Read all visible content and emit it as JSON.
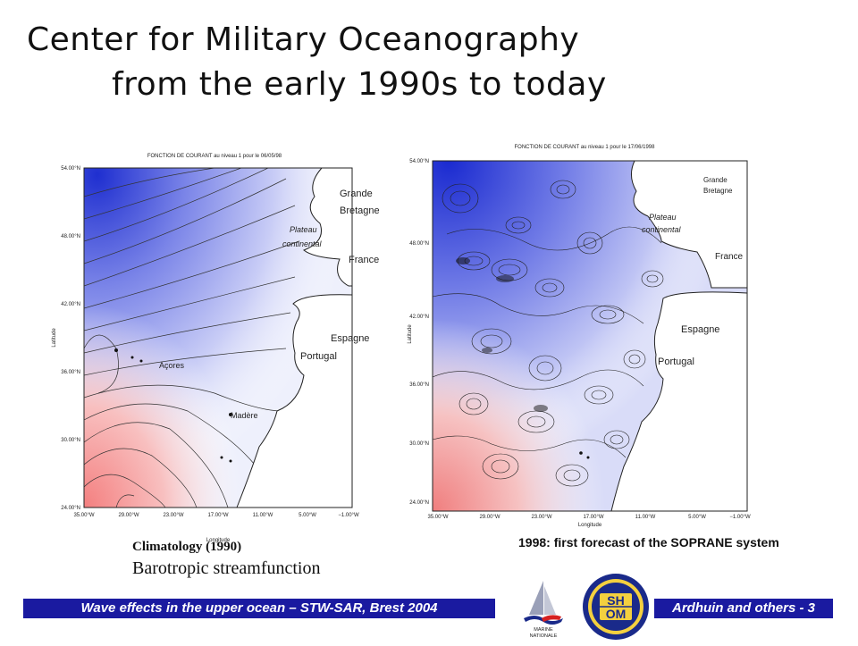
{
  "title": {
    "line1": "Center for Military Oceanography",
    "line2": "from the early 1990s to today"
  },
  "map_left": {
    "header": "FONCTION DE COURANT au niveau 1 pour le 06/05/98",
    "y_ticks": [
      "54.00°N",
      "48.00°N",
      "42.00°N",
      "36.00°N",
      "30.00°N",
      "24.00°N"
    ],
    "x_ticks": [
      "35.00°W",
      "29.00°W",
      "23.00°W",
      "17.00°W",
      "11.00°W",
      "5.00°W",
      "−1.00°W"
    ],
    "ylabel": "Latitude",
    "xlabel": "Longitude",
    "labels": {
      "gb1": "Grande",
      "gb2": "Bretagne",
      "plateau1": "Plateau",
      "plateau2": "continental",
      "france": "France",
      "espagne": "Espagne",
      "portugal": "Portugal",
      "acores": "Açores",
      "madere": "Madère"
    }
  },
  "map_right": {
    "header": "FONCTION DE COURANT au niveau 1 pour le 17/06/1998",
    "y_ticks": [
      "54.00°N",
      "48.00°N",
      "42.00°N",
      "36.00°N",
      "30.00°N",
      "24.00°N"
    ],
    "x_ticks": [
      "35.00°W",
      "29.00°W",
      "23.00°W",
      "17.00°W",
      "11.00°W",
      "5.00°W",
      "−1.00°W"
    ],
    "ylabel": "Latitude",
    "xlabel": "Longitude",
    "labels": {
      "gb1": "Grande",
      "gb2": "Bretagne",
      "plateau1": "Plateau",
      "plateau2": "continental",
      "france": "France",
      "espagne": "Espagne",
      "portugal": "Portugal"
    }
  },
  "captions": {
    "left_line1": "Climatology (1990)",
    "left_line2": "Barotropic streamfunction",
    "right": "1998: first forecast of the SOPRANE system"
  },
  "footer": {
    "left": "Wave effects in the upper ocean – STW-SAR, Brest 2004",
    "right": "Ardhuin and others - 3"
  },
  "logos": {
    "marine_line1": "MARINE",
    "marine_line2": "NATIONALE",
    "shom_top": "SH",
    "shom_bottom": "OM"
  },
  "colors": {
    "footer_bg": "#1a1aa0",
    "ocean_blue": "#2b3bd6",
    "ocean_red": "#f08a8a",
    "land": "#ffffff"
  }
}
